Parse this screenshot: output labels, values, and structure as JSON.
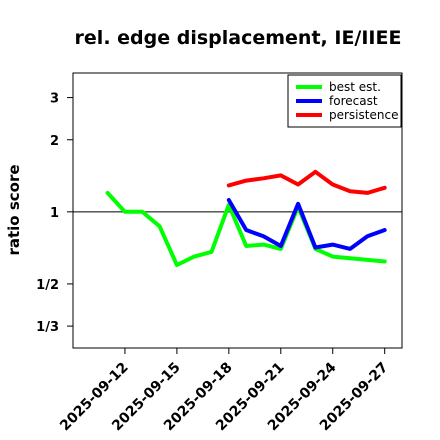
{
  "chart_data": {
    "type": "line",
    "title": "rel. edge displacement, IE/IIEE",
    "xlabel": "",
    "ylabel": "ratio score",
    "y_scale": "log",
    "ylim": [
      0.27,
      3.8
    ],
    "xlim": [
      "2025-09-09",
      "2025-09-28"
    ],
    "x_ticks": [
      {
        "label": "2025-09-12",
        "color": "#000000"
      },
      {
        "label": "2025-09-15",
        "color": "#000000"
      },
      {
        "label": "2025-09-18",
        "color": "#1a8a1a"
      },
      {
        "label": "2025-09-21",
        "color": "#000000"
      },
      {
        "label": "2025-09-24",
        "color": "#000000"
      },
      {
        "label": "2025-09-27",
        "color": "#000000"
      }
    ],
    "y_ticks": [
      {
        "label": "3",
        "value": 3
      },
      {
        "label": "2",
        "value": 2
      },
      {
        "label": "1",
        "value": 1
      },
      {
        "label": "1/2",
        "value": 0.5
      },
      {
        "label": "1/3",
        "value": 0.3333
      }
    ],
    "reference_line": 1,
    "legend_position": "top-right",
    "series": [
      {
        "name": "best est.",
        "color": "#00ff00",
        "x": [
          "2025-09-11",
          "2025-09-12",
          "2025-09-13",
          "2025-09-14",
          "2025-09-15",
          "2025-09-16",
          "2025-09-17",
          "2025-09-18",
          "2025-09-19",
          "2025-09-20",
          "2025-09-21",
          "2025-09-22",
          "2025-09-23",
          "2025-09-24",
          "2025-09-25",
          "2025-09-26",
          "2025-09-27"
        ],
        "y": [
          1.2,
          1.0,
          1.0,
          0.87,
          0.6,
          0.65,
          0.68,
          1.07,
          0.72,
          0.73,
          0.7,
          1.05,
          0.7,
          0.65,
          0.64,
          0.63,
          0.62
        ]
      },
      {
        "name": "forecast",
        "color": "#0000ff",
        "x": [
          "2025-09-18",
          "2025-09-19",
          "2025-09-20",
          "2025-09-21",
          "2025-09-22",
          "2025-09-23",
          "2025-09-24",
          "2025-09-25",
          "2025-09-26",
          "2025-09-27"
        ],
        "y": [
          1.12,
          0.84,
          0.79,
          0.72,
          1.08,
          0.71,
          0.73,
          0.7,
          0.79,
          0.84
        ]
      },
      {
        "name": "persistence",
        "color": "#ff0000",
        "x": [
          "2025-09-18",
          "2025-09-19",
          "2025-09-20",
          "2025-09-21",
          "2025-09-22",
          "2025-09-23",
          "2025-09-24",
          "2025-09-25",
          "2025-09-26",
          "2025-09-27"
        ],
        "y": [
          1.29,
          1.35,
          1.38,
          1.42,
          1.3,
          1.47,
          1.3,
          1.22,
          1.2,
          1.26
        ]
      }
    ]
  }
}
